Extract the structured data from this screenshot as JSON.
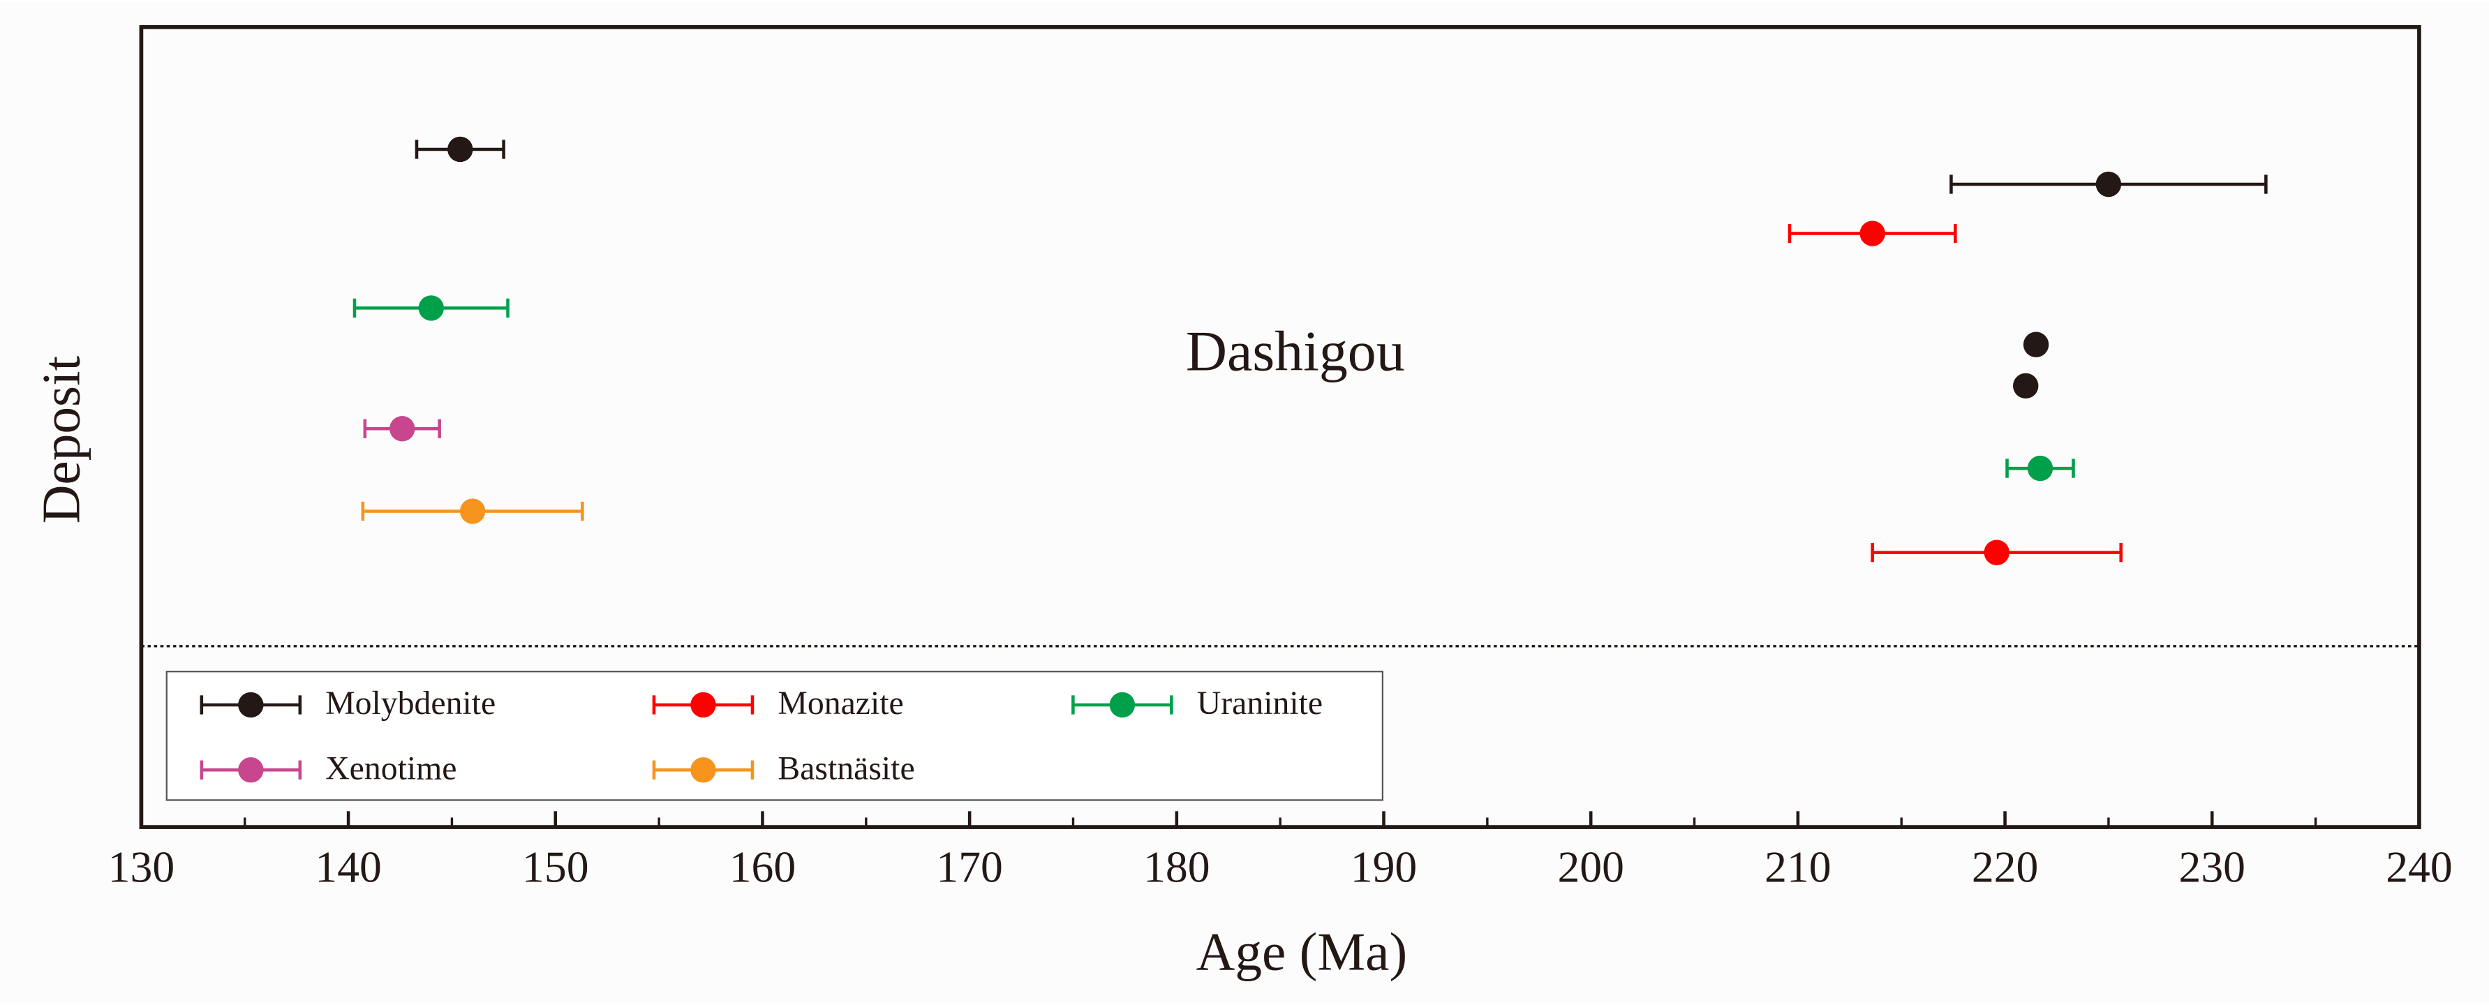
{
  "chart_data": {
    "type": "errorbar",
    "annotation": "Dashigou",
    "x_label": "Age (Ma)",
    "y_label": "Deposit",
    "xlim": [
      130,
      240
    ],
    "xticks": [
      130,
      140,
      150,
      160,
      170,
      180,
      190,
      200,
      210,
      220,
      230,
      240
    ],
    "series": [
      {
        "name": "Molybdenite",
        "color": "#231815",
        "values": [
          145.4,
          225,
          221.5,
          221
        ],
        "errors": [
          2.1,
          7.6,
          null,
          null
        ]
      },
      {
        "name": "Monazite",
        "color": "#ff0000",
        "values": [
          213.6,
          219.6
        ],
        "errors": [
          4,
          6
        ]
      },
      {
        "name": "Uraninite",
        "color": "#00a04a",
        "values": [
          144,
          221.7
        ],
        "errors": [
          3.7,
          1.6
        ]
      },
      {
        "name": "Xenotime",
        "color": "#c8468e",
        "values": [
          142.6
        ],
        "errors": [
          1.8
        ]
      },
      {
        "name": "Bastnäsite",
        "color": "#f7941d",
        "values": [
          146
        ],
        "errors": [
          5.3
        ]
      }
    ]
  }
}
